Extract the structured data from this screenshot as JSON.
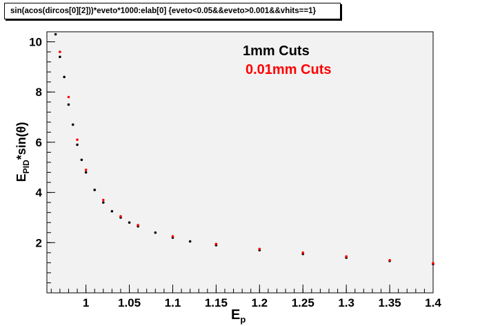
{
  "title": "sin(acos(dircos[0][2]))*eveto*1000:elab[0] {eveto<0.05&&eveto>0.001&&vhits==1}",
  "chart_data": {
    "type": "scatter",
    "title": "sin(acos(dircos[0][2]))*eveto*1000:elab[0] {eveto<0.05&&eveto>0.001&&vhits==1}",
    "xlabel_main": "E",
    "xlabel_sub": "p",
    "ylabel_main": "E",
    "ylabel_sub": "PID",
    "ylabel_rest": "*sin(θ)",
    "xlim": [
      0.955,
      1.4
    ],
    "ylim": [
      0,
      10.4
    ],
    "x_ticks": [
      "1",
      "1.05",
      "1.1",
      "1.15",
      "1.2",
      "1.25",
      "1.3",
      "1.35",
      "1.4"
    ],
    "x_tick_values": [
      1.0,
      1.05,
      1.1,
      1.15,
      1.2,
      1.25,
      1.3,
      1.35,
      1.4
    ],
    "y_ticks": [
      "2",
      "4",
      "6",
      "8",
      "10"
    ],
    "y_tick_values": [
      2,
      4,
      6,
      8,
      10
    ],
    "grid": false,
    "legend_placement": "top-right",
    "series": [
      {
        "name": "1mm Cuts",
        "color": "#000000",
        "points": [
          [
            0.965,
            10.3
          ],
          [
            0.97,
            9.4
          ],
          [
            0.975,
            8.6
          ],
          [
            0.98,
            7.5
          ],
          [
            0.985,
            6.7
          ],
          [
            0.99,
            5.9
          ],
          [
            0.995,
            5.3
          ],
          [
            1.0,
            4.8
          ],
          [
            1.01,
            4.1
          ],
          [
            1.02,
            3.6
          ],
          [
            1.03,
            3.25
          ],
          [
            1.04,
            3.0
          ],
          [
            1.05,
            2.8
          ],
          [
            1.06,
            2.65
          ],
          [
            1.08,
            2.4
          ],
          [
            1.1,
            2.2
          ],
          [
            1.12,
            2.05
          ],
          [
            1.15,
            1.9
          ],
          [
            1.2,
            1.7
          ],
          [
            1.25,
            1.55
          ],
          [
            1.3,
            1.4
          ],
          [
            1.35,
            1.27
          ],
          [
            1.4,
            1.15
          ]
        ]
      },
      {
        "name": "0.01mm Cuts",
        "color": "#ff0000",
        "points": [
          [
            0.97,
            9.6
          ],
          [
            0.98,
            7.8
          ],
          [
            0.99,
            6.1
          ],
          [
            1.0,
            4.9
          ],
          [
            1.02,
            3.7
          ],
          [
            1.04,
            3.05
          ],
          [
            1.06,
            2.7
          ],
          [
            1.1,
            2.25
          ],
          [
            1.15,
            1.95
          ],
          [
            1.2,
            1.75
          ],
          [
            1.25,
            1.6
          ],
          [
            1.3,
            1.45
          ],
          [
            1.35,
            1.3
          ],
          [
            1.4,
            1.18
          ]
        ]
      }
    ]
  }
}
